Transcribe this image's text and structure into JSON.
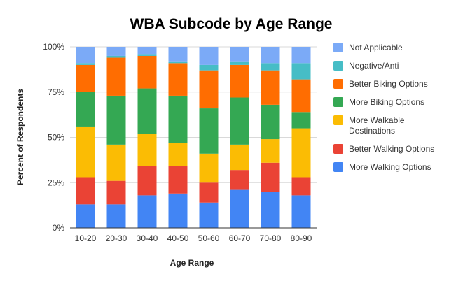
{
  "chart_data": {
    "type": "bar",
    "stacked": true,
    "title": "WBA Subcode by Age Range",
    "xlabel": "Age Range",
    "ylabel": "Percent of Respondents",
    "ylim": [
      0,
      100
    ],
    "y_ticks": [
      "0%",
      "25%",
      "50%",
      "75%",
      "100%"
    ],
    "grid": true,
    "legend_position": "right",
    "categories": [
      "10-20",
      "20-30",
      "30-40",
      "40-50",
      "50-60",
      "60-70",
      "70-80",
      "80-90"
    ],
    "series": [
      {
        "name": "More Walking Options",
        "color": "#4285f4",
        "values": [
          13,
          13,
          18,
          19,
          14,
          21,
          20,
          18
        ]
      },
      {
        "name": "Better Walking Options",
        "color": "#ea4335",
        "values": [
          15,
          13,
          16,
          15,
          11,
          11,
          16,
          10
        ]
      },
      {
        "name": "More Walkable Destinations",
        "color": "#fbbc04",
        "values": [
          28,
          20,
          18,
          13,
          16,
          14,
          13,
          27
        ]
      },
      {
        "name": "More Biking Options",
        "color": "#34a853",
        "values": [
          19,
          27,
          25,
          26,
          25,
          26,
          19,
          9
        ]
      },
      {
        "name": "Better Biking Options",
        "color": "#ff6d01",
        "values": [
          15,
          21,
          18,
          18,
          21,
          18,
          19,
          18
        ]
      },
      {
        "name": "Negative/Anti",
        "color": "#46bdc6",
        "values": [
          1,
          1,
          1,
          1,
          3,
          2,
          4,
          9
        ]
      },
      {
        "name": "Not Applicable",
        "color": "#7baaf7",
        "values": [
          9,
          5,
          4,
          8,
          10,
          8,
          9,
          9
        ]
      }
    ],
    "legend_order": [
      "Not Applicable",
      "Negative/Anti",
      "Better Biking Options",
      "More Biking Options",
      "More Walkable Destinations",
      "Better Walking Options",
      "More Walking Options"
    ]
  }
}
